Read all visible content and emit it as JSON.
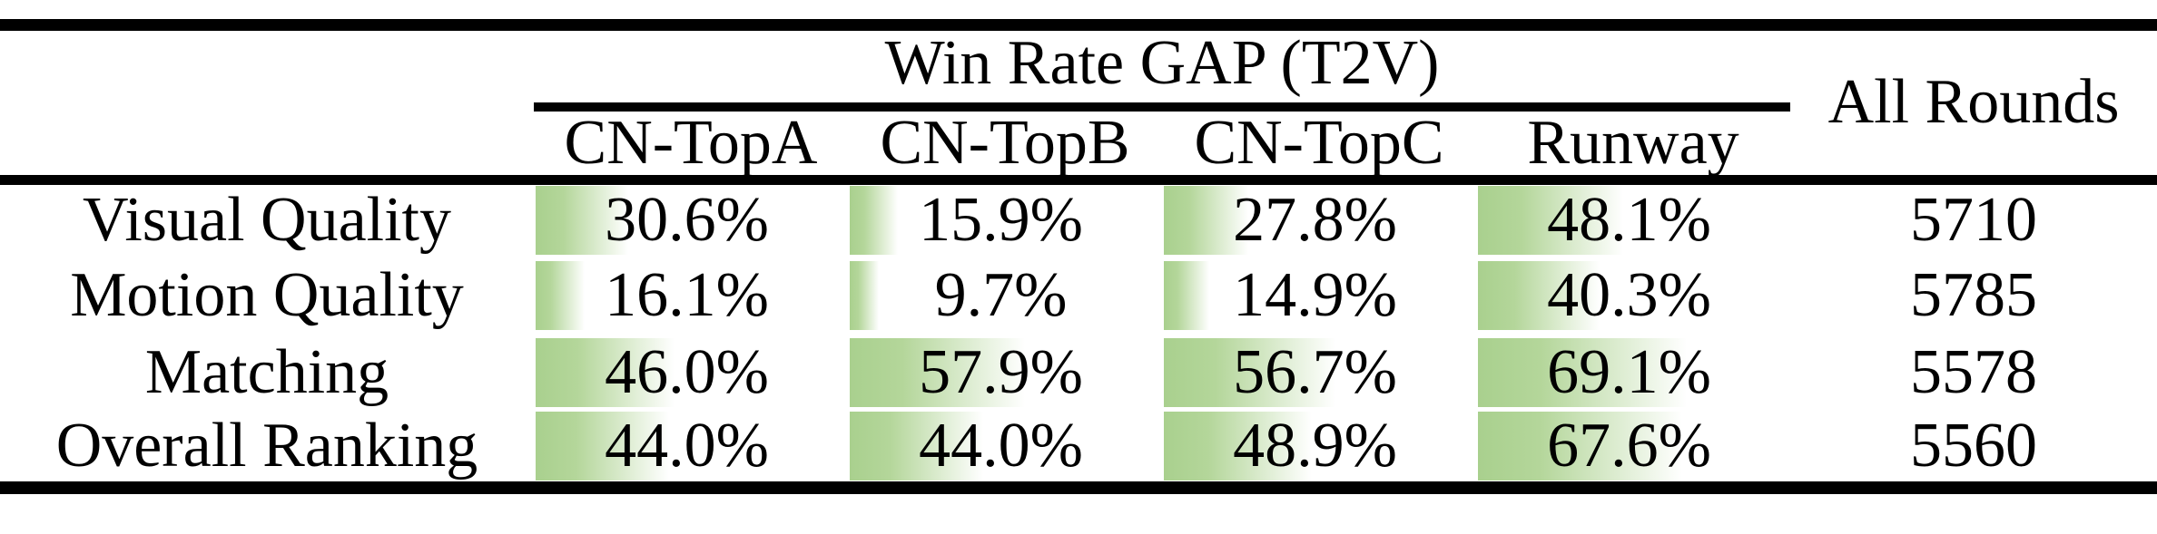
{
  "table": {
    "group_header": "Win Rate GAP (T2V)",
    "all_rounds_header": "All Rounds",
    "columns": [
      "CN-TopA",
      "CN-TopB",
      "CN-TopC",
      "Runway"
    ],
    "rows": [
      {
        "label": "Visual Quality",
        "values": [
          "30.6%",
          "15.9%",
          "27.8%",
          "48.1%"
        ],
        "bars": [
          30.6,
          15.9,
          27.8,
          48.1
        ],
        "all_rounds": "5710"
      },
      {
        "label": "Motion Quality",
        "values": [
          "16.1%",
          "9.7%",
          "14.9%",
          "40.3%"
        ],
        "bars": [
          16.1,
          9.7,
          14.9,
          40.3
        ],
        "all_rounds": "5785"
      },
      {
        "label": "Matching",
        "values": [
          "46.0%",
          "57.9%",
          "56.7%",
          "69.1%"
        ],
        "bars": [
          46.0,
          57.9,
          56.7,
          69.1
        ],
        "all_rounds": "5578"
      },
      {
        "label": "Overall Ranking",
        "values": [
          "44.0%",
          "44.0%",
          "48.9%",
          "67.6%"
        ],
        "bars": [
          44.0,
          44.0,
          48.9,
          67.6
        ],
        "all_rounds": "5560"
      }
    ],
    "colors": {
      "bar_green": "#a9d08e",
      "bar_fade": "#ffffff",
      "rule": "#000000",
      "text": "#000000",
      "background": "#ffffff"
    }
  },
  "chart_data": {
    "type": "table",
    "title": "Win Rate GAP (T2V)",
    "categories": [
      "CN-TopA",
      "CN-TopB",
      "CN-TopC",
      "Runway"
    ],
    "series": [
      {
        "name": "Visual Quality",
        "values": [
          30.6,
          15.9,
          27.8,
          48.1
        ],
        "all_rounds": 5710
      },
      {
        "name": "Motion Quality",
        "values": [
          16.1,
          9.7,
          14.9,
          40.3
        ],
        "all_rounds": 5785
      },
      {
        "name": "Matching",
        "values": [
          46.0,
          57.9,
          56.7,
          69.1
        ],
        "all_rounds": 5578
      },
      {
        "name": "Overall Ranking",
        "values": [
          44.0,
          44.0,
          48.9,
          67.6
        ],
        "all_rounds": 5560
      }
    ],
    "value_unit": "%",
    "bar_scale_max": 100,
    "layout": "data bars rendered left-anchored behind centered percentage text"
  }
}
